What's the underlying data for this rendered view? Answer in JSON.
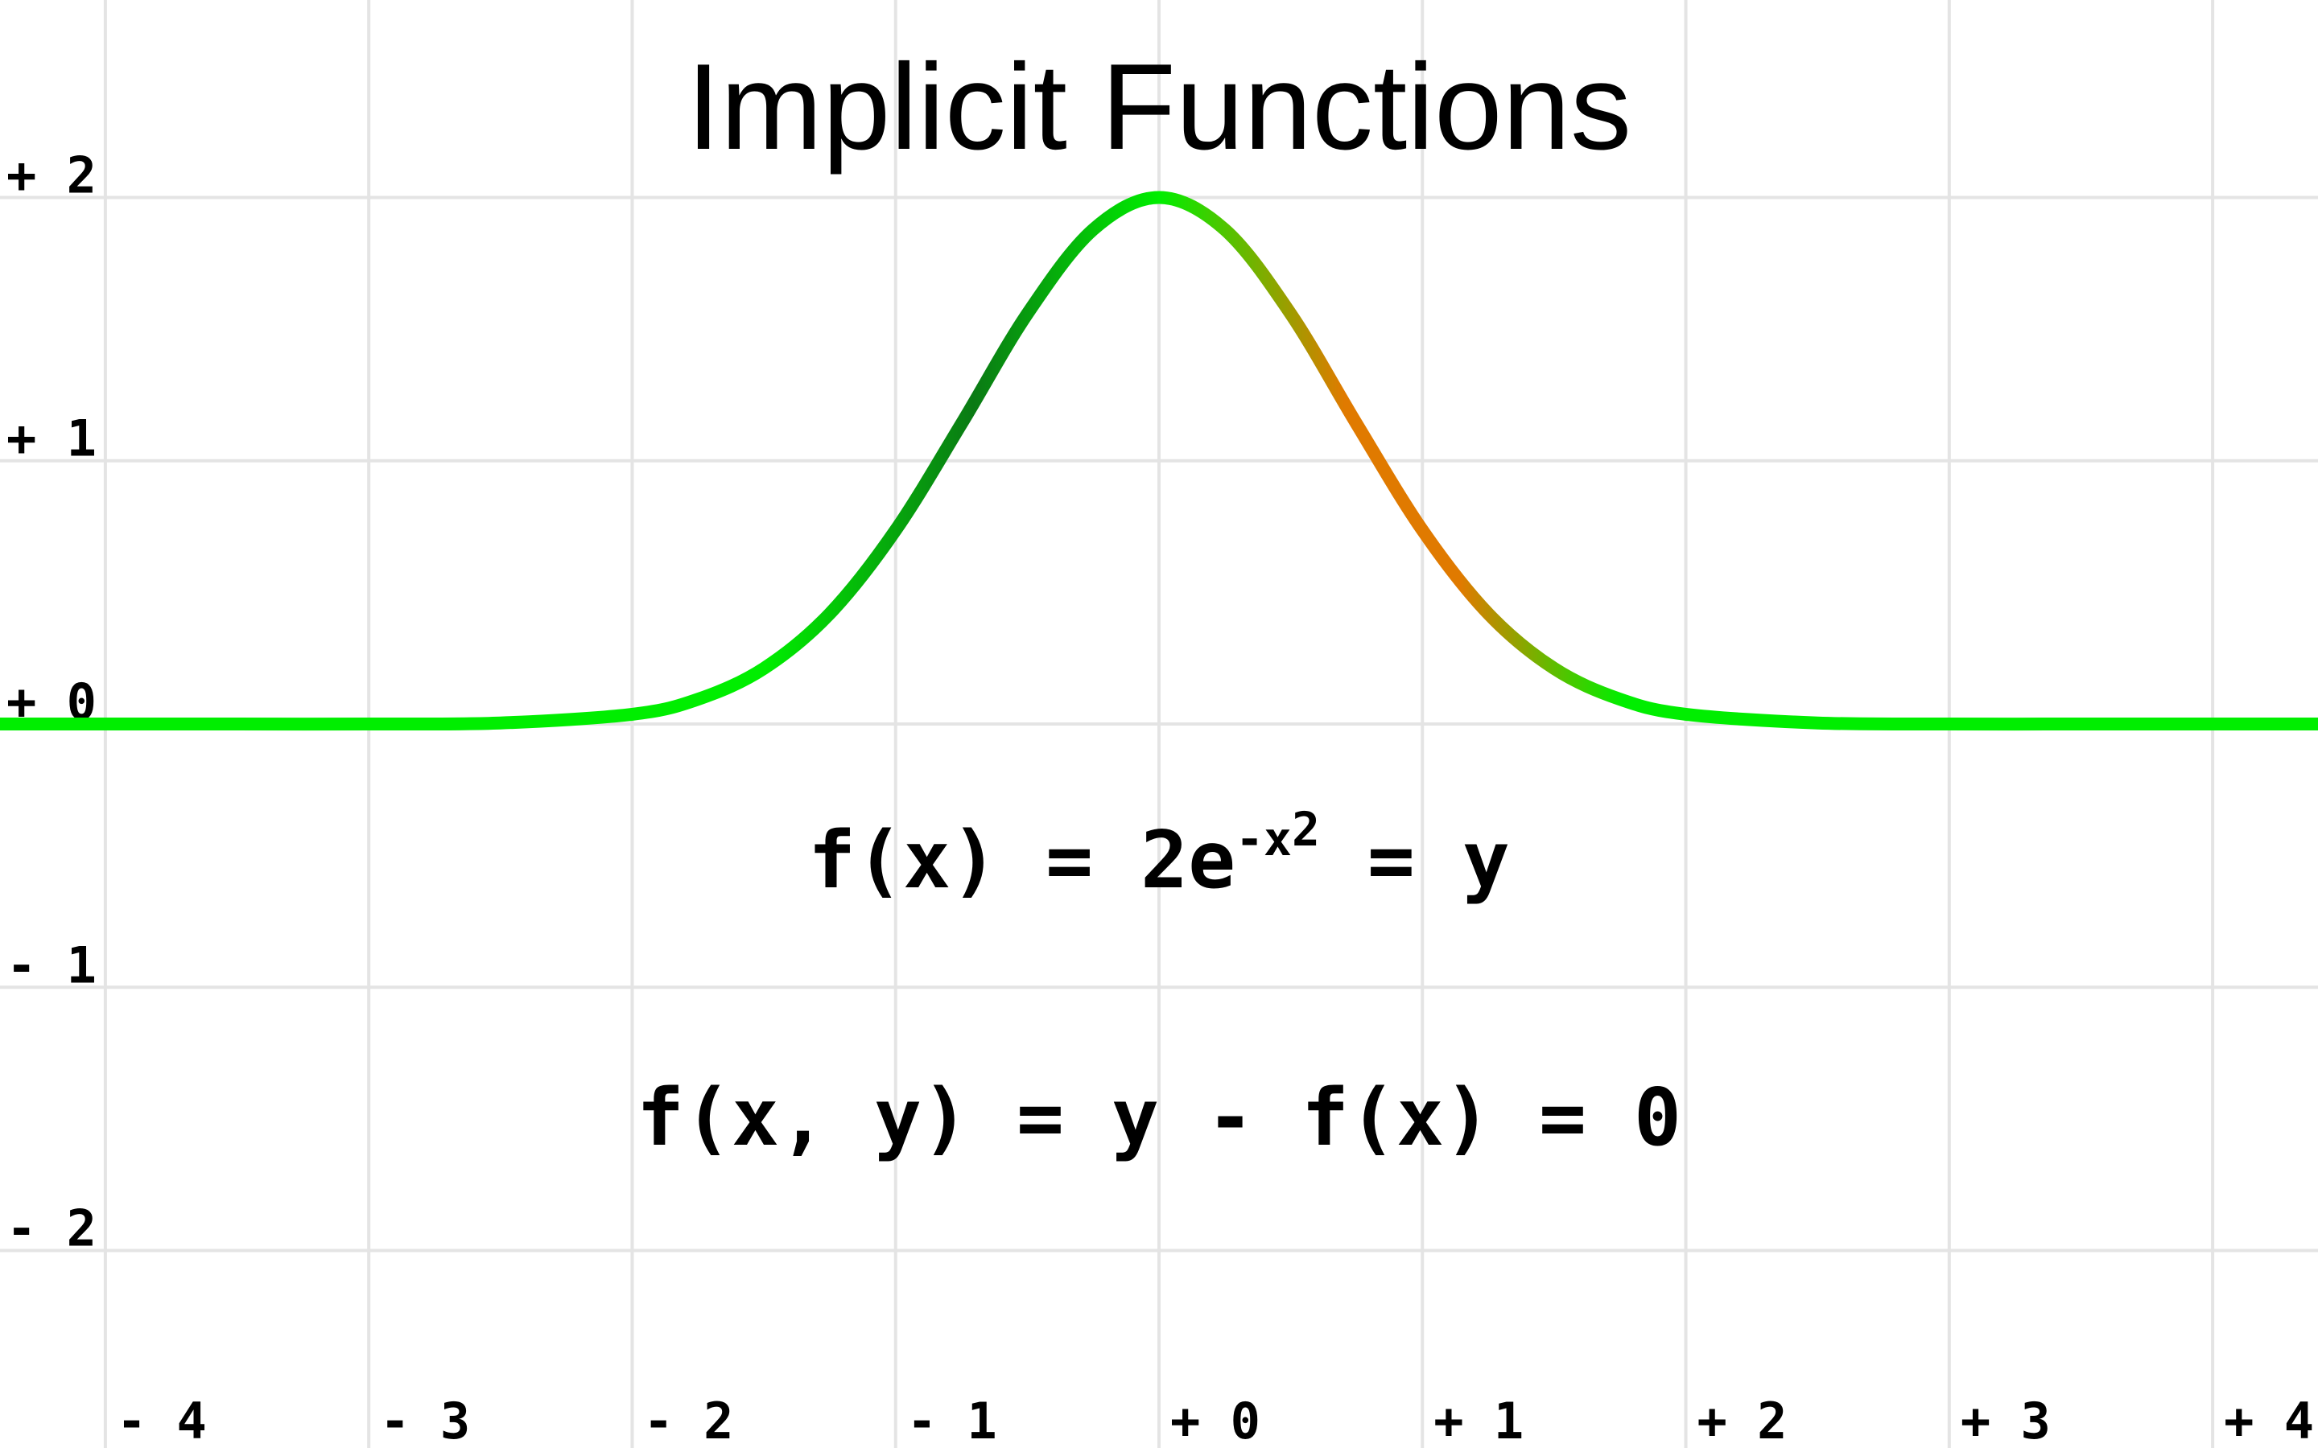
{
  "chart_data": {
    "type": "line",
    "title": "Implicit Functions",
    "xlabel": "",
    "ylabel": "",
    "xlim": [
      -4.4,
      4.4
    ],
    "ylim": [
      -2.75,
      2.75
    ],
    "grid": true,
    "x_ticks": [
      -4,
      -3,
      -2,
      -1,
      0,
      1,
      2,
      3,
      4
    ],
    "y_ticks": [
      2,
      1,
      0,
      -1,
      -2
    ],
    "x_tick_labels": [
      "- 4",
      "- 3",
      "- 2",
      "- 1",
      "+ 0",
      "+ 1",
      "+ 2",
      "+ 3",
      "+ 4"
    ],
    "y_tick_labels": [
      "+ 2",
      "+ 1",
      "+ 0",
      "- 1",
      "- 2"
    ],
    "series": [
      {
        "function": "2*exp(-x^2)",
        "x": [
          -4.4,
          -4,
          -3.5,
          -3,
          -2.5,
          -2,
          -1.75,
          -1.5,
          -1.25,
          -1,
          -0.75,
          -0.5,
          -0.25,
          0,
          0.25,
          0.5,
          0.75,
          1,
          1.25,
          1.5,
          1.75,
          2,
          2.5,
          3,
          3.5,
          4,
          4.4
        ],
        "y": [
          0.0,
          0.0,
          0.0,
          0.0,
          0.004,
          0.037,
          0.094,
          0.211,
          0.419,
          0.736,
          1.14,
          1.558,
          1.878,
          2.0,
          1.878,
          1.558,
          1.14,
          0.736,
          0.419,
          0.211,
          0.094,
          0.037,
          0.004,
          0.0,
          0.0,
          0.0,
          0.0
        ]
      }
    ],
    "annotations": {
      "eq1_left": "f(x) = 2e",
      "eq1_exponent": "-x",
      "eq1_power": "2",
      "eq1_right": " = y",
      "eq2": "f(x, y) = y - f(x) = 0"
    },
    "colors": {
      "grid": "#e4e4e4",
      "curve_base": "#00ee00",
      "curve_dark": "#0a7a14",
      "curve_warm": "#e07a00"
    }
  }
}
